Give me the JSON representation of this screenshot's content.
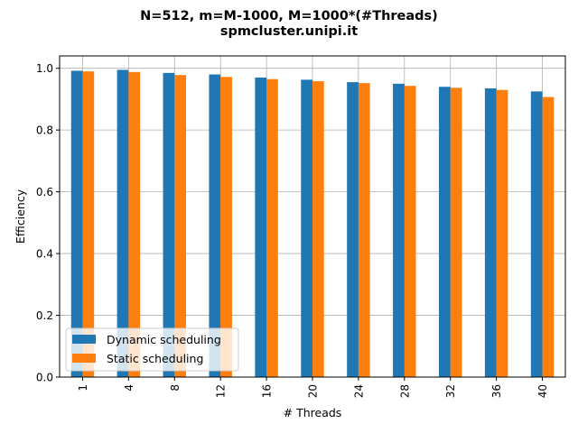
{
  "chart_data": {
    "type": "bar",
    "title": "N=512, m=M-1000, M=1000*(#Threads)",
    "subtitle": "spmcluster.unipi.it",
    "xlabel": "# Threads",
    "ylabel": "Efficiency",
    "categories": [
      "1",
      "4",
      "8",
      "12",
      "16",
      "20",
      "24",
      "28",
      "32",
      "36",
      "40"
    ],
    "series": [
      {
        "name": "Dynamic scheduling",
        "color": "#1f77b4",
        "values": [
          0.992,
          0.995,
          0.985,
          0.98,
          0.97,
          0.963,
          0.955,
          0.95,
          0.94,
          0.935,
          0.925
        ]
      },
      {
        "name": "Static scheduling",
        "color": "#ff7f0e",
        "values": [
          0.99,
          0.988,
          0.978,
          0.972,
          0.965,
          0.958,
          0.952,
          0.943,
          0.937,
          0.93,
          0.907
        ]
      }
    ],
    "ylim": [
      0,
      1.04
    ],
    "yticks": [
      0.0,
      0.2,
      0.4,
      0.6,
      0.8,
      1.0
    ],
    "ytick_labels": [
      "0.0",
      "0.2",
      "0.4",
      "0.6",
      "0.8",
      "1.0"
    ],
    "grid": true,
    "legend_position": "lower-left"
  }
}
